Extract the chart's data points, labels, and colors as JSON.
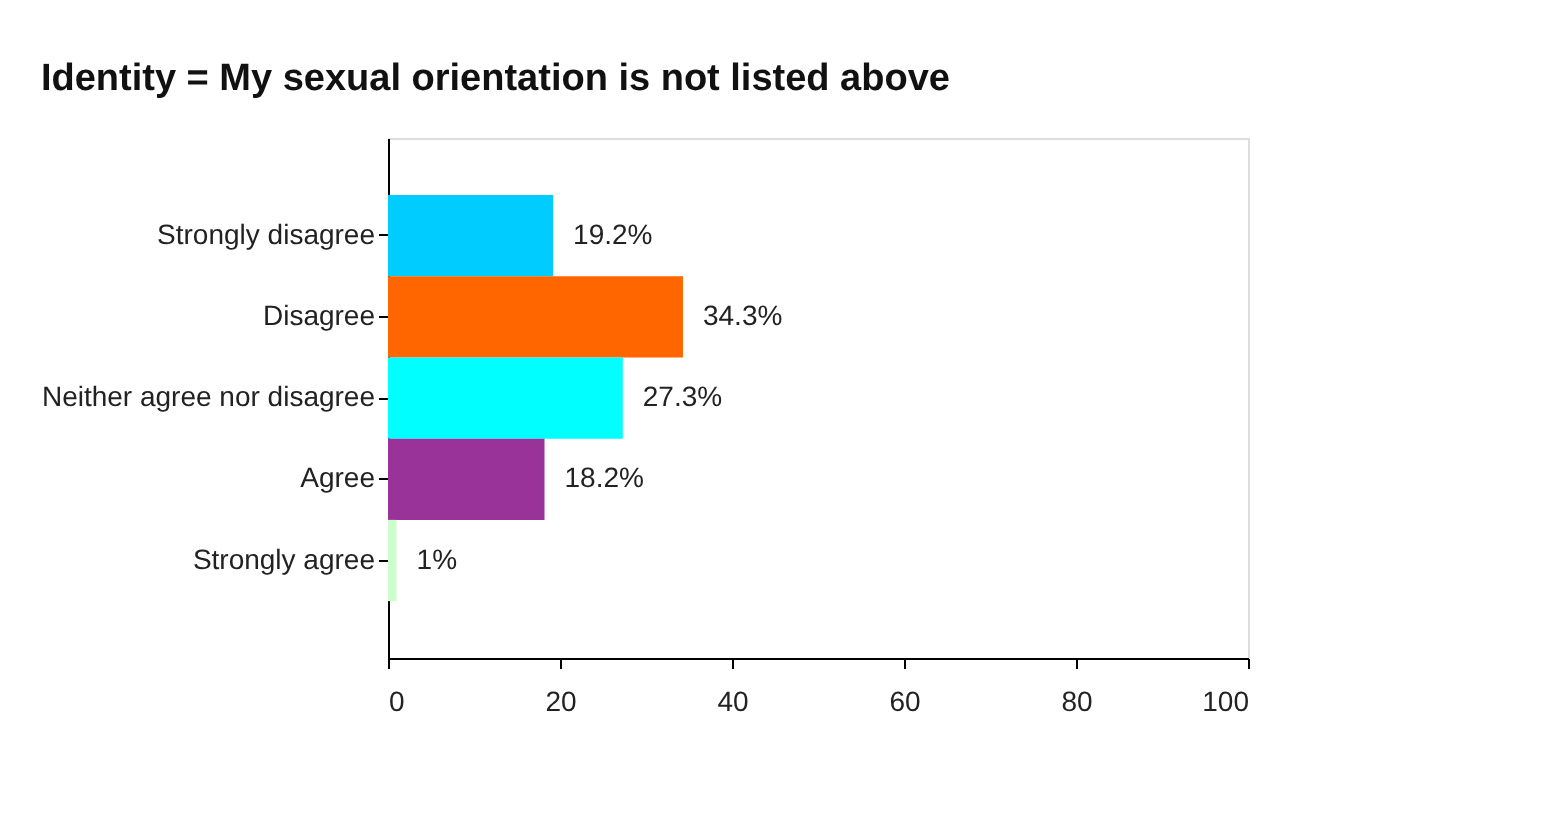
{
  "chart_data": {
    "type": "bar",
    "orientation": "horizontal",
    "title": "Identity = My sexual orientation is not listed above",
    "categories": [
      "Strongly disagree",
      "Disagree",
      "Neither agree nor disagree",
      "Agree",
      "Strongly agree"
    ],
    "values": [
      19.2,
      34.3,
      27.3,
      18.2,
      1
    ],
    "colors": [
      "#00ccff",
      "#ff6600",
      "#00ffff",
      "#993399",
      "#ccffcc"
    ],
    "value_labels": [
      "19.2%",
      "34.3%",
      "27.3%",
      "18.2%",
      "1%"
    ],
    "xlim": [
      0,
      100
    ],
    "xticks": [
      0,
      20,
      40,
      60,
      80,
      100
    ],
    "grid": false
  }
}
